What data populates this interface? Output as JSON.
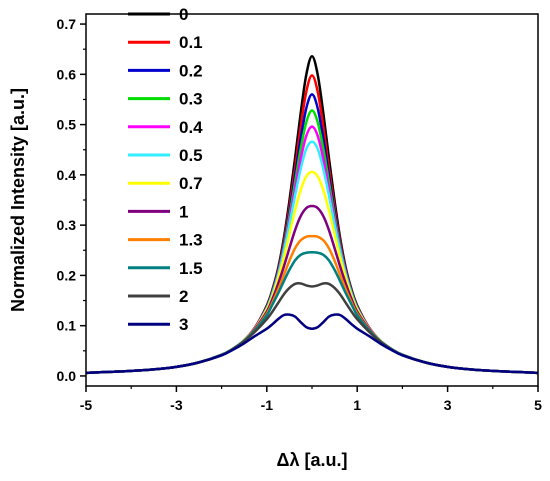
{
  "chart_data": {
    "type": "line",
    "xlabel": "Δλ [a.u.]",
    "ylabel": "Normalized Intensity [a.u.]",
    "xlim": [
      -5,
      5
    ],
    "ylim": [
      -0.02,
      0.72
    ],
    "xticks": [
      -5,
      -3,
      -1,
      1,
      3,
      5
    ],
    "xtick_labels": [
      "-5",
      "-3",
      "-1",
      "1",
      "3",
      "5"
    ],
    "yticks": [
      0.0,
      0.1,
      0.2,
      0.3,
      0.4,
      0.5,
      0.6,
      0.7
    ],
    "ytick_labels": [
      "0.0",
      "0.1",
      "0.2",
      "0.3",
      "0.4",
      "0.5",
      "0.6",
      "0.7"
    ],
    "grid": false,
    "legend_position": "top-left",
    "x": [
      -5,
      -4.5,
      -4,
      -3.5,
      -3,
      -2.5,
      -2,
      -1.75,
      -1.5,
      -1.25,
      -1,
      -0.875,
      -0.75,
      -0.625,
      -0.5,
      -0.375,
      -0.25,
      -0.125,
      0,
      0.125,
      0.25,
      0.375,
      0.5,
      0.625,
      0.75,
      0.875,
      1,
      1.25,
      1.5,
      1.75,
      2,
      2.5,
      3,
      3.5,
      4,
      4.5,
      5
    ],
    "series": [
      {
        "name": "0",
        "color": "#000000",
        "values": [
          0.006,
          0.008,
          0.01,
          0.013,
          0.018,
          0.027,
          0.042,
          0.054,
          0.071,
          0.098,
          0.14,
          0.172,
          0.214,
          0.273,
          0.348,
          0.433,
          0.523,
          0.6,
          0.636,
          0.6,
          0.523,
          0.433,
          0.348,
          0.273,
          0.214,
          0.172,
          0.14,
          0.098,
          0.071,
          0.054,
          0.042,
          0.027,
          0.018,
          0.013,
          0.01,
          0.008,
          0.006
        ]
      },
      {
        "name": "0.1",
        "color": "#ff0000",
        "values": [
          0.006,
          0.008,
          0.01,
          0.013,
          0.018,
          0.027,
          0.042,
          0.054,
          0.071,
          0.098,
          0.138,
          0.169,
          0.21,
          0.266,
          0.336,
          0.413,
          0.496,
          0.566,
          0.598,
          0.566,
          0.496,
          0.413,
          0.336,
          0.266,
          0.21,
          0.169,
          0.138,
          0.098,
          0.071,
          0.054,
          0.042,
          0.027,
          0.018,
          0.013,
          0.01,
          0.008,
          0.006
        ]
      },
      {
        "name": "0.2",
        "color": "#0000cc",
        "values": [
          0.006,
          0.008,
          0.01,
          0.013,
          0.018,
          0.027,
          0.042,
          0.054,
          0.071,
          0.097,
          0.137,
          0.167,
          0.207,
          0.26,
          0.326,
          0.398,
          0.472,
          0.533,
          0.56,
          0.533,
          0.472,
          0.398,
          0.326,
          0.26,
          0.207,
          0.167,
          0.137,
          0.097,
          0.071,
          0.054,
          0.042,
          0.027,
          0.018,
          0.013,
          0.01,
          0.008,
          0.006
        ]
      },
      {
        "name": "0.3",
        "color": "#00dd00",
        "values": [
          0.006,
          0.008,
          0.01,
          0.013,
          0.018,
          0.027,
          0.042,
          0.054,
          0.071,
          0.097,
          0.136,
          0.166,
          0.205,
          0.256,
          0.318,
          0.385,
          0.452,
          0.505,
          0.528,
          0.505,
          0.452,
          0.385,
          0.318,
          0.256,
          0.205,
          0.166,
          0.136,
          0.097,
          0.071,
          0.054,
          0.042,
          0.027,
          0.018,
          0.013,
          0.01,
          0.008,
          0.006
        ]
      },
      {
        "name": "0.4",
        "color": "#ff00ff",
        "values": [
          0.006,
          0.008,
          0.01,
          0.013,
          0.018,
          0.027,
          0.042,
          0.054,
          0.071,
          0.097,
          0.135,
          0.164,
          0.203,
          0.251,
          0.309,
          0.372,
          0.432,
          0.478,
          0.496,
          0.478,
          0.432,
          0.372,
          0.309,
          0.251,
          0.203,
          0.164,
          0.135,
          0.097,
          0.071,
          0.054,
          0.042,
          0.027,
          0.018,
          0.013,
          0.01,
          0.008,
          0.006
        ]
      },
      {
        "name": "0.5",
        "color": "#33eeff",
        "values": [
          0.006,
          0.008,
          0.01,
          0.013,
          0.018,
          0.027,
          0.042,
          0.054,
          0.071,
          0.096,
          0.134,
          0.163,
          0.2,
          0.247,
          0.301,
          0.359,
          0.412,
          0.452,
          0.466,
          0.452,
          0.412,
          0.359,
          0.301,
          0.247,
          0.2,
          0.163,
          0.134,
          0.096,
          0.071,
          0.054,
          0.042,
          0.027,
          0.018,
          0.013,
          0.01,
          0.008,
          0.006
        ]
      },
      {
        "name": "0.7",
        "color": "#ffff00",
        "values": [
          0.006,
          0.008,
          0.01,
          0.013,
          0.018,
          0.027,
          0.042,
          0.054,
          0.071,
          0.096,
          0.132,
          0.159,
          0.194,
          0.235,
          0.282,
          0.329,
          0.37,
          0.397,
          0.406,
          0.397,
          0.37,
          0.329,
          0.282,
          0.235,
          0.194,
          0.159,
          0.132,
          0.096,
          0.071,
          0.054,
          0.042,
          0.027,
          0.018,
          0.013,
          0.01,
          0.008,
          0.006
        ]
      },
      {
        "name": "1",
        "color": "#800080",
        "values": [
          0.006,
          0.008,
          0.01,
          0.013,
          0.018,
          0.027,
          0.042,
          0.054,
          0.07,
          0.095,
          0.128,
          0.153,
          0.183,
          0.217,
          0.254,
          0.29,
          0.318,
          0.334,
          0.338,
          0.334,
          0.318,
          0.29,
          0.254,
          0.217,
          0.183,
          0.153,
          0.128,
          0.095,
          0.07,
          0.054,
          0.042,
          0.027,
          0.018,
          0.013,
          0.01,
          0.008,
          0.006
        ]
      },
      {
        "name": "1.3",
        "color": "#ff8000",
        "values": [
          0.006,
          0.008,
          0.01,
          0.013,
          0.018,
          0.027,
          0.042,
          0.054,
          0.07,
          0.093,
          0.124,
          0.146,
          0.172,
          0.2,
          0.229,
          0.254,
          0.27,
          0.277,
          0.278,
          0.277,
          0.27,
          0.254,
          0.229,
          0.2,
          0.172,
          0.146,
          0.124,
          0.093,
          0.07,
          0.054,
          0.042,
          0.027,
          0.018,
          0.013,
          0.01,
          0.008,
          0.006
        ]
      },
      {
        "name": "1.5",
        "color": "#008080",
        "values": [
          0.006,
          0.008,
          0.01,
          0.013,
          0.018,
          0.027,
          0.042,
          0.054,
          0.07,
          0.092,
          0.121,
          0.142,
          0.164,
          0.188,
          0.211,
          0.23,
          0.241,
          0.245,
          0.246,
          0.245,
          0.241,
          0.23,
          0.211,
          0.188,
          0.164,
          0.142,
          0.121,
          0.092,
          0.07,
          0.054,
          0.042,
          0.027,
          0.018,
          0.013,
          0.01,
          0.008,
          0.006
        ]
      },
      {
        "name": "2",
        "color": "#404040",
        "values": [
          0.006,
          0.008,
          0.01,
          0.013,
          0.018,
          0.027,
          0.041,
          0.053,
          0.069,
          0.089,
          0.113,
          0.128,
          0.145,
          0.162,
          0.175,
          0.183,
          0.184,
          0.18,
          0.178,
          0.18,
          0.184,
          0.183,
          0.175,
          0.162,
          0.145,
          0.128,
          0.113,
          0.089,
          0.069,
          0.053,
          0.041,
          0.027,
          0.018,
          0.013,
          0.01,
          0.008,
          0.006
        ]
      },
      {
        "name": "3",
        "color": "#000080",
        "values": [
          0.006,
          0.008,
          0.01,
          0.013,
          0.018,
          0.027,
          0.041,
          0.052,
          0.065,
          0.08,
          0.094,
          0.103,
          0.113,
          0.121,
          0.122,
          0.118,
          0.107,
          0.097,
          0.094,
          0.097,
          0.107,
          0.118,
          0.122,
          0.121,
          0.113,
          0.103,
          0.094,
          0.08,
          0.065,
          0.052,
          0.041,
          0.027,
          0.018,
          0.013,
          0.01,
          0.008,
          0.006
        ]
      }
    ]
  }
}
